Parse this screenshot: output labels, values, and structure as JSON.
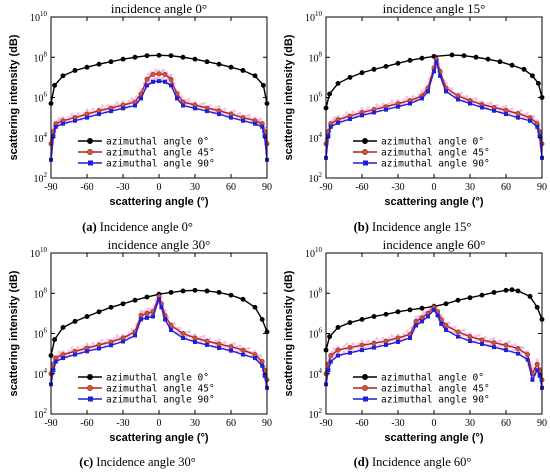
{
  "chart_data": [
    {
      "type": "line",
      "title": "incidence angle 0°",
      "caption_label": "(a)",
      "caption_text": "Incidence angle 0°",
      "xlabel": "scattering angle (°)",
      "ylabel": "scattering intensity (dB)",
      "xlim": [
        -90,
        90
      ],
      "xticks": [
        "-90",
        "-60",
        "-30",
        "0",
        "30",
        "60",
        "90"
      ],
      "ylim_log10": [
        2,
        10
      ],
      "ytick_exponents": [
        2,
        4,
        6,
        8,
        10
      ],
      "y_scale": "log",
      "grid": false,
      "legend_position": "bottom-center",
      "series": [
        {
          "name": "azimuthal angle 0°",
          "color": "#000000",
          "marker": "circle",
          "x": [
            -90,
            -87,
            -80,
            -70,
            -60,
            -50,
            -40,
            -30,
            -20,
            -10,
            0,
            10,
            20,
            30,
            40,
            50,
            60,
            70,
            80,
            87,
            90
          ],
          "y": [
            500000,
            4000000,
            12000000,
            22000000,
            32000000,
            45000000,
            60000000,
            80000000,
            100000000,
            120000000,
            125000000,
            120000000,
            100000000,
            80000000,
            60000000,
            45000000,
            32000000,
            22000000,
            12000000,
            4000000,
            500000
          ]
        },
        {
          "name": "azimuthal angle 45°",
          "color": "#b22222",
          "marker": "circle",
          "x": [
            -90,
            -88,
            -86,
            -80,
            -70,
            -60,
            -50,
            -40,
            -30,
            -20,
            -15,
            -10,
            -5,
            0,
            5,
            10,
            15,
            20,
            30,
            40,
            50,
            60,
            70,
            80,
            86,
            88,
            90
          ],
          "y": [
            5000,
            20000,
            50000,
            70000,
            100000,
            150000,
            220000,
            300000,
            420000,
            600000,
            1500000,
            8000000,
            14000000,
            15000000,
            14000000,
            8000000,
            1500000,
            600000,
            420000,
            300000,
            220000,
            150000,
            100000,
            70000,
            50000,
            20000,
            5000
          ]
        },
        {
          "name": "azimuthal angle 90°",
          "color": "#1f1fdc",
          "marker": "square",
          "x": [
            -90,
            -88,
            -86,
            -80,
            -70,
            -60,
            -50,
            -40,
            -30,
            -20,
            -15,
            -10,
            -5,
            0,
            5,
            10,
            15,
            20,
            30,
            40,
            50,
            60,
            70,
            80,
            86,
            88,
            90
          ],
          "y": [
            800,
            12000,
            35000,
            50000,
            70000,
            100000,
            150000,
            210000,
            290000,
            400000,
            900000,
            4000000,
            6000000,
            6500000,
            6000000,
            4000000,
            900000,
            400000,
            290000,
            210000,
            150000,
            100000,
            70000,
            50000,
            35000,
            12000,
            800
          ]
        }
      ]
    },
    {
      "type": "line",
      "title": "incidence angle 15°",
      "caption_label": "(b)",
      "caption_text": "Incidence angle 15°",
      "xlabel": "scattering angle (°)",
      "ylabel": "scattering intensity (dB)",
      "xlim": [
        -90,
        90
      ],
      "xticks": [
        "-90",
        "-60",
        "-30",
        "0",
        "30",
        "60",
        "90"
      ],
      "ylim_log10": [
        2,
        10
      ],
      "ytick_exponents": [
        2,
        4,
        6,
        8,
        10
      ],
      "y_scale": "log",
      "grid": false,
      "legend_position": "bottom-center",
      "series": [
        {
          "name": "azimuthal angle 0°",
          "color": "#000000",
          "marker": "circle",
          "x": [
            -90,
            -87,
            -80,
            -70,
            -60,
            -50,
            -40,
            -30,
            -20,
            -10,
            0,
            15,
            25,
            35,
            45,
            55,
            65,
            75,
            82,
            87,
            90
          ],
          "y": [
            300000,
            1500000,
            5000000,
            10000000,
            17000000,
            25000000,
            35000000,
            50000000,
            70000000,
            90000000,
            110000000,
            130000000,
            120000000,
            100000000,
            80000000,
            60000000,
            40000000,
            25000000,
            12000000,
            5000000,
            1000000
          ]
        },
        {
          "name": "azimuthal angle 45°",
          "color": "#b22222",
          "marker": "circle",
          "x": [
            -90,
            -88,
            -86,
            -80,
            -70,
            -60,
            -50,
            -40,
            -30,
            -20,
            -10,
            -5,
            0,
            2,
            5,
            10,
            20,
            30,
            40,
            50,
            60,
            70,
            80,
            86,
            88,
            90
          ],
          "y": [
            5000,
            20000,
            50000,
            80000,
            120000,
            180000,
            250000,
            350000,
            500000,
            700000,
            1200000,
            3000000,
            30000000,
            80000000,
            20000000,
            3000000,
            1200000,
            700000,
            450000,
            320000,
            230000,
            160000,
            100000,
            50000,
            20000,
            5000
          ]
        },
        {
          "name": "azimuthal angle 90°",
          "color": "#1f1fdc",
          "marker": "square",
          "x": [
            -90,
            -88,
            -86,
            -80,
            -70,
            -60,
            -50,
            -40,
            -30,
            -20,
            -10,
            -5,
            0,
            2,
            5,
            10,
            20,
            30,
            40,
            50,
            60,
            70,
            80,
            86,
            88,
            90
          ],
          "y": [
            1000,
            12000,
            35000,
            55000,
            85000,
            130000,
            180000,
            250000,
            350000,
            500000,
            900000,
            2000000,
            20000000,
            60000000,
            12000000,
            2000000,
            800000,
            500000,
            320000,
            220000,
            150000,
            100000,
            70000,
            35000,
            12000,
            1000
          ]
        }
      ]
    },
    {
      "type": "line",
      "title": "incidence angle 30°",
      "caption_label": "(c)",
      "caption_text": "Incidence angle 30°",
      "xlabel": "scattering angle (°)",
      "ylabel": "scattering intensity (dB)",
      "xlim": [
        -90,
        90
      ],
      "xticks": [
        "-90",
        "-60",
        "-30",
        "0",
        "30",
        "60",
        "90"
      ],
      "ylim_log10": [
        2,
        10
      ],
      "ytick_exponents": [
        2,
        4,
        6,
        8,
        10
      ],
      "y_scale": "log",
      "grid": false,
      "legend_position": "bottom-center",
      "series": [
        {
          "name": "azimuthal angle 0°",
          "color": "#000000",
          "marker": "circle",
          "x": [
            -90,
            -87,
            -80,
            -70,
            -60,
            -50,
            -40,
            -30,
            -20,
            -10,
            0,
            10,
            20,
            30,
            40,
            50,
            60,
            70,
            80,
            86,
            90
          ],
          "y": [
            80000,
            500000,
            2000000,
            4000000,
            7000000,
            12000000,
            20000000,
            30000000,
            45000000,
            65000000,
            90000000,
            110000000,
            130000000,
            140000000,
            130000000,
            110000000,
            80000000,
            50000000,
            20000000,
            5000000,
            1200000
          ]
        },
        {
          "name": "azimuthal angle 45°",
          "color": "#b22222",
          "marker": "circle",
          "x": [
            -90,
            -88,
            -86,
            -80,
            -70,
            -60,
            -50,
            -40,
            -30,
            -20,
            -15,
            -10,
            -5,
            0,
            2,
            5,
            10,
            20,
            30,
            40,
            50,
            60,
            70,
            80,
            86,
            88,
            90
          ],
          "y": [
            10000,
            30000,
            60000,
            90000,
            130000,
            190000,
            270000,
            380000,
            600000,
            1200000,
            8000000,
            10000000,
            12000000,
            70000000,
            30000000,
            8000000,
            2500000,
            1000000,
            600000,
            420000,
            300000,
            220000,
            150000,
            90000,
            40000,
            15000,
            5000
          ]
        },
        {
          "name": "azimuthal angle 90°",
          "color": "#1f1fdc",
          "marker": "square",
          "x": [
            -90,
            -88,
            -86,
            -80,
            -70,
            -60,
            -50,
            -40,
            -30,
            -20,
            -15,
            -10,
            -5,
            0,
            2,
            5,
            10,
            20,
            30,
            40,
            50,
            60,
            70,
            80,
            86,
            88,
            90
          ],
          "y": [
            3000,
            15000,
            40000,
            60000,
            90000,
            130000,
            180000,
            260000,
            400000,
            800000,
            5000000,
            6000000,
            7000000,
            50000000,
            20000000,
            5000000,
            1500000,
            600000,
            380000,
            270000,
            190000,
            140000,
            90000,
            60000,
            25000,
            8000,
            2000
          ]
        }
      ]
    },
    {
      "type": "line",
      "title": "incidence angle 60°",
      "caption_label": "(d)",
      "caption_text": "Incidence angle 60°",
      "xlabel": "scattering angle (°)",
      "ylabel": "scattering intensity (dB)",
      "xlim": [
        -90,
        90
      ],
      "xticks": [
        "-90",
        "-60",
        "-30",
        "0",
        "30",
        "60",
        "90"
      ],
      "ylim_log10": [
        2,
        10
      ],
      "ytick_exponents": [
        2,
        4,
        6,
        8,
        10
      ],
      "y_scale": "log",
      "grid": false,
      "legend_position": "bottom-center",
      "series": [
        {
          "name": "azimuthal angle 0°",
          "color": "#000000",
          "marker": "circle",
          "x": [
            -90,
            -87,
            -80,
            -70,
            -60,
            -50,
            -40,
            -30,
            -20,
            -10,
            0,
            10,
            20,
            30,
            40,
            50,
            60,
            65,
            70,
            80,
            86,
            90
          ],
          "y": [
            150000,
            700000,
            2000000,
            3500000,
            5000000,
            7000000,
            9000000,
            12000000,
            15000000,
            18000000,
            22000000,
            30000000,
            45000000,
            60000000,
            80000000,
            110000000,
            140000000,
            150000000,
            130000000,
            70000000,
            20000000,
            5000000
          ]
        },
        {
          "name": "azimuthal angle 45°",
          "color": "#b22222",
          "marker": "circle",
          "x": [
            -90,
            -88,
            -86,
            -80,
            -70,
            -60,
            -50,
            -40,
            -30,
            -20,
            -15,
            -10,
            -5,
            0,
            3,
            6,
            10,
            20,
            30,
            40,
            50,
            60,
            70,
            78,
            82,
            86,
            88,
            90
          ],
          "y": [
            10000,
            30000,
            80000,
            150000,
            200000,
            260000,
            330000,
            420000,
            600000,
            900000,
            4000000,
            6000000,
            10000000,
            20000000,
            12000000,
            5000000,
            2500000,
            1200000,
            700000,
            480000,
            350000,
            260000,
            180000,
            90000,
            10000,
            30000,
            15000,
            5000
          ]
        },
        {
          "name": "azimuthal angle 90°",
          "color": "#1f1fdc",
          "marker": "square",
          "x": [
            -90,
            -88,
            -86,
            -80,
            -70,
            -60,
            -50,
            -40,
            -30,
            -20,
            -15,
            -10,
            -5,
            0,
            3,
            6,
            10,
            20,
            30,
            40,
            50,
            60,
            70,
            78,
            82,
            86,
            88,
            90
          ],
          "y": [
            3000,
            15000,
            40000,
            80000,
            110000,
            150000,
            200000,
            270000,
            380000,
            600000,
            2500000,
            4000000,
            7000000,
            15000000,
            8000000,
            3000000,
            1500000,
            700000,
            420000,
            300000,
            210000,
            150000,
            100000,
            50000,
            5000,
            15000,
            8000,
            2000
          ]
        }
      ]
    }
  ]
}
